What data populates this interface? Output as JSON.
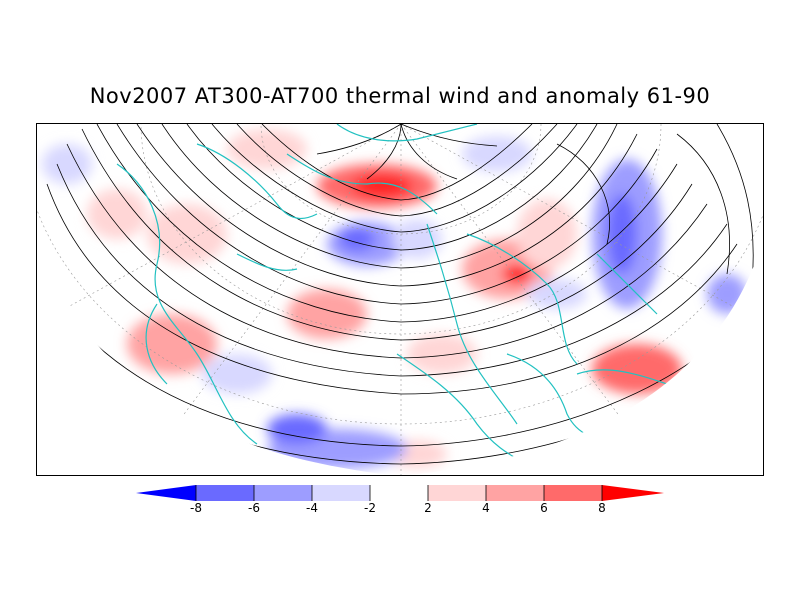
{
  "title": "Nov2007 AT300-AT700 thermal wind and anomaly 61-90",
  "colorbar": {
    "labels": [
      "-8",
      "-6",
      "-4",
      "-2",
      "2",
      "4",
      "6",
      "8"
    ],
    "colors": [
      "#0000ff",
      "#6a6aff",
      "#9d9dff",
      "#d8d8ff",
      "#ffffff",
      "#ffd6d6",
      "#ffa3a3",
      "#ff6a6a",
      "#ff0000"
    ]
  },
  "map": {
    "land_outline_color": "#22c1c1",
    "streamline_color": "#000000",
    "grid_color": "#999999"
  }
}
